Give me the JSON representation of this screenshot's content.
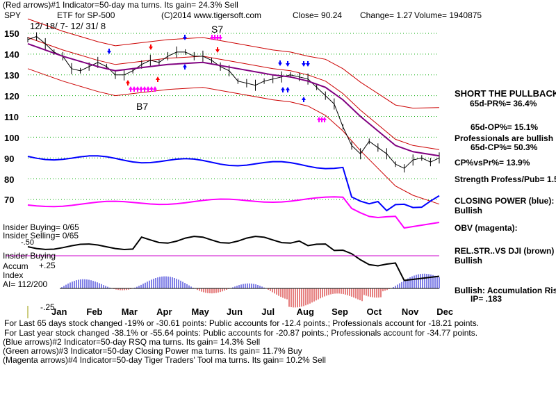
{
  "header": {
    "line1": "(Red arrows)#1 Indicator=50-day ma turns. Its gain= 24.3% Sell",
    "ticker": "SPY",
    "desc": "ETF for SP-500",
    "copyright": "(C)2014 www.tigersoft.com",
    "close": "Close=  90.24",
    "change": "Change= 1.27",
    "volume": "Volume= 1940875",
    "date_range": "12/ 18/ 7- 12/ 31/ 8"
  },
  "chart_labels": {
    "s7": "S7",
    "b7": "B7",
    "insider_buying_count": "Insider Buying= 0/65",
    "insider_selling_count": "Insider Selling= 0/65",
    "insider_buying_line": "Insider Buying",
    "accum_line1": "Accum",
    "accum_line2": "Index",
    "ai_value": "AI= 112/200",
    "accum_plus": "+.25",
    "accum_minus": "-.25",
    "overlap_fragment": "-.50"
  },
  "right_panel": {
    "short_pullback": "SHORT THE PULLBACK",
    "pr": "65d-PR%= 36.4%",
    "op": "65d-OP%= 15.1%",
    "prof_bullish": "Professionals are bullish",
    "cp": "65d-CP%= 50.3%",
    "cpvspr": "CP%vsPr%=  13.9%",
    "strength": "Strength Profess/Pub= 1.5",
    "closing_power": "CLOSING POWER (blue):",
    "cp_status": "Bullish",
    "obv": "OBV (magenta):",
    "relstr": "REL.STR..VS DJI (brown)",
    "relstr_status": "Bullish",
    "accum_rising": "Bullish: Accumulation Rising",
    "ip": "IP=  .183"
  },
  "footer": {
    "line1": "For Last 65 days stock changed -19% or -30.61 points:  Public accounts for -12.4 points.;  Professionals account for -18.21 points.",
    "line2": "For Last year stock changed -38.1% or -55.64 points:  Public accounts for -20.87 points.;  Professionals account for -34.77 points.",
    "line3": "(Blue arrows)#2 Indicator=50-day RSQ ma turns. Its gain= 14.3% Sell",
    "line4": "(Green arrows)#3 Indicator=50-day Closing Power ma turns. Its gain= 11.7% Buy",
    "line5": "(Magenta arrows)#4 Indicator=50-day Tiger Traders' Tool ma turns. Its gain= 10.2% Sell"
  },
  "colors": {
    "price": "#000000",
    "ma50": "#800080",
    "bands": "#cc0000",
    "closing_power": "#0000ff",
    "obv": "#ff00ff",
    "relstr": "#000000",
    "grid": "#00aa00",
    "accum_pos": "#0000cc",
    "accum_neg": "#cc0000",
    "ref_line": "#ff0000"
  },
  "chart_data": {
    "type": "line",
    "title": "SPY  ETF for SP-500",
    "ylim": [
      60,
      155
    ],
    "yticks": [
      150,
      140,
      130,
      120,
      110,
      100,
      90,
      80,
      70
    ],
    "months": [
      "Jan",
      "Feb",
      "Mar",
      "Apr",
      "May",
      "Jun",
      "Jul",
      "Aug",
      "Sep",
      "Oct",
      "Nov",
      "Dec"
    ],
    "series": [
      {
        "points": [
          [
            0,
            147
          ],
          [
            0.25,
            148.5
          ],
          [
            0.5,
            145
          ],
          [
            0.75,
            141
          ],
          [
            1,
            139
          ],
          [
            1.25,
            133
          ],
          [
            1.5,
            132
          ],
          [
            1.75,
            134
          ],
          [
            2,
            136
          ],
          [
            2.25,
            134
          ],
          [
            2.5,
            130
          ],
          [
            2.75,
            130
          ],
          [
            3,
            132
          ],
          [
            3.25,
            135
          ],
          [
            3.5,
            137
          ],
          [
            3.75,
            136
          ],
          [
            4,
            139
          ],
          [
            4.25,
            141
          ],
          [
            4.5,
            141
          ],
          [
            4.75,
            139
          ],
          [
            5,
            139
          ],
          [
            5.25,
            137
          ],
          [
            5.5,
            134
          ],
          [
            5.75,
            132
          ],
          [
            6,
            127
          ],
          [
            6.25,
            126
          ],
          [
            6.5,
            125
          ],
          [
            6.75,
            127
          ],
          [
            7,
            128
          ],
          [
            7.25,
            129
          ],
          [
            7.5,
            130
          ],
          [
            7.75,
            129
          ],
          [
            8,
            128
          ],
          [
            8.25,
            124
          ],
          [
            8.5,
            120
          ],
          [
            8.75,
            116
          ],
          [
            9,
            105
          ],
          [
            9.25,
            96
          ],
          [
            9.5,
            92
          ],
          [
            9.75,
            98
          ],
          [
            10,
            95
          ],
          [
            10.25,
            92
          ],
          [
            10.5,
            87
          ],
          [
            10.75,
            85
          ],
          [
            11,
            89
          ],
          [
            11.25,
            90
          ],
          [
            11.5,
            88
          ],
          [
            11.75,
            90
          ]
        ]
      },
      {
        "points": [
          [
            0,
            145
          ],
          [
            1,
            139
          ],
          [
            2,
            134
          ],
          [
            2.5,
            132
          ],
          [
            3,
            133
          ],
          [
            4,
            135
          ],
          [
            5,
            136
          ],
          [
            6,
            133
          ],
          [
            7,
            130
          ],
          [
            7.5,
            129
          ],
          [
            8,
            127
          ],
          [
            8.5,
            124
          ],
          [
            9,
            118
          ],
          [
            9.5,
            110
          ],
          [
            10,
            103
          ],
          [
            10.5,
            96
          ],
          [
            11,
            93
          ],
          [
            11.75,
            91
          ]
        ]
      }
    ],
    "annotations": [
      "S7",
      "B7"
    ]
  }
}
